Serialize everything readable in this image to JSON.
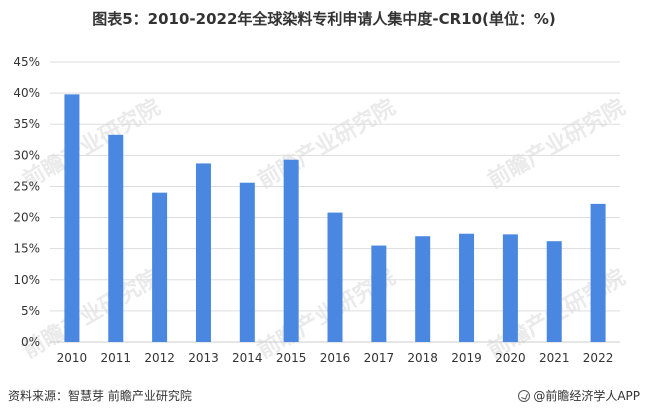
{
  "header": {
    "title": "图表5：2010-2022年全球染料专利申请人集中度-CR10(单位：%)"
  },
  "footer": {
    "source": "资料来源：智慧芽 前瞻产业研究院",
    "brand": "@前瞻经济学人APP",
    "brand_icon": "brand-logo-icon"
  },
  "watermark": {
    "text": "前瞻产业研究院"
  },
  "colors": {
    "bar": "#4a87e0",
    "grid": "#dddddd",
    "axis": "#cccccc",
    "watermark": "#d9d9d9"
  },
  "chart_data": {
    "type": "bar",
    "title": "图表5：2010-2022年全球染料专利申请人集中度-CR10(单位：%)",
    "categories": [
      "2010",
      "2011",
      "2012",
      "2013",
      "2014",
      "2015",
      "2016",
      "2017",
      "2018",
      "2019",
      "2020",
      "2021",
      "2022"
    ],
    "values": [
      39.8,
      33.3,
      24.0,
      28.7,
      25.6,
      29.3,
      20.8,
      15.5,
      17.0,
      17.4,
      17.3,
      16.2,
      22.2
    ],
    "yticks": [
      "0%",
      "5%",
      "10%",
      "15%",
      "20%",
      "25%",
      "30%",
      "35%",
      "40%",
      "45%"
    ],
    "ylim": [
      0,
      45
    ],
    "xlabel": "",
    "ylabel": "",
    "grid": true,
    "legend": "none"
  }
}
